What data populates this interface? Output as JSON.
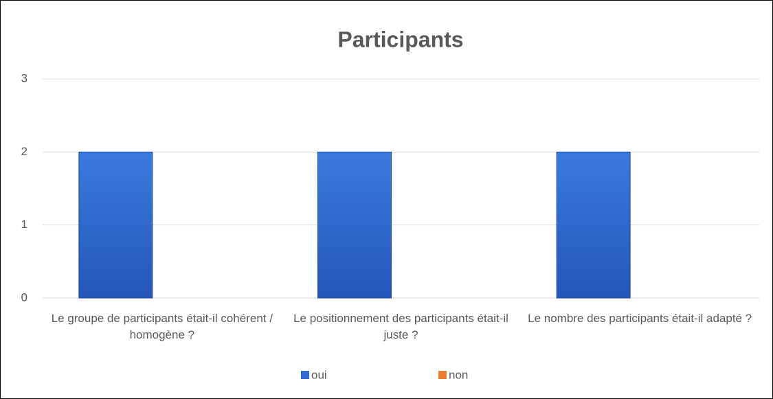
{
  "chart_data": {
    "type": "bar",
    "title": "Participants",
    "categories": [
      "Le groupe de participants était-il cohérent / homogène ?",
      "Le positionnement des participants était-il juste ?",
      "Le nombre des participants était-il adapté ?"
    ],
    "series": [
      {
        "name": "oui",
        "color": "#2f6ad0",
        "values": [
          2,
          2,
          2
        ]
      },
      {
        "name": "non",
        "color": "#ed7d31",
        "values": [
          0,
          0,
          0
        ]
      }
    ],
    "ylim": [
      0,
      3
    ],
    "yticks": [
      0,
      1,
      2,
      3
    ],
    "grid": true
  }
}
